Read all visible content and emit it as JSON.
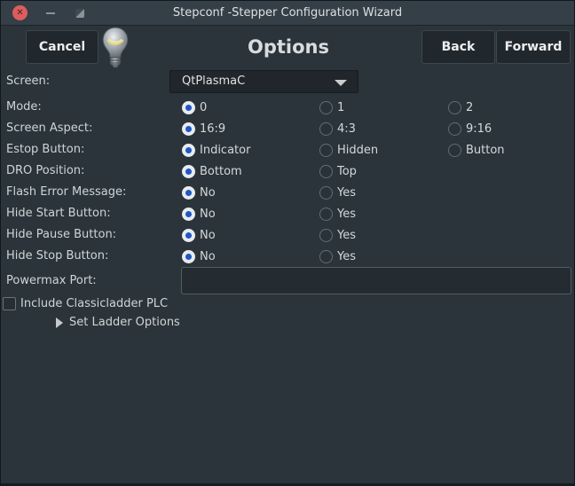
{
  "window": {
    "title": "Stepconf -Stepper Configuration Wizard",
    "close_glyph": "✕"
  },
  "header": {
    "cancel_label": "Cancel",
    "title": "Options",
    "back_label": "Back",
    "forward_label": "Forward",
    "icon": "lightbulb-icon"
  },
  "form": {
    "screen": {
      "label": "Screen:",
      "value": "QtPlasmaC"
    },
    "radio_rows": [
      {
        "label": "Mode:",
        "options": [
          {
            "label": "0",
            "selected": true
          },
          {
            "label": "1",
            "selected": false
          },
          {
            "label": "2",
            "selected": false
          }
        ]
      },
      {
        "label": "Screen Aspect:",
        "options": [
          {
            "label": "16:9",
            "selected": true
          },
          {
            "label": "4:3",
            "selected": false
          },
          {
            "label": "9:16",
            "selected": false
          }
        ]
      },
      {
        "label": "Estop Button:",
        "options": [
          {
            "label": "Indicator",
            "selected": true
          },
          {
            "label": "Hidden",
            "selected": false
          },
          {
            "label": "Button",
            "selected": false
          }
        ]
      },
      {
        "label": "DRO Position:",
        "options": [
          {
            "label": "Bottom",
            "selected": true
          },
          {
            "label": "Top",
            "selected": false
          }
        ]
      },
      {
        "label": "Flash Error Message:",
        "options": [
          {
            "label": "No",
            "selected": true
          },
          {
            "label": "Yes",
            "selected": false
          }
        ]
      },
      {
        "label": "Hide Start Button:",
        "options": [
          {
            "label": "No",
            "selected": true
          },
          {
            "label": "Yes",
            "selected": false
          }
        ]
      },
      {
        "label": "Hide Pause Button:",
        "options": [
          {
            "label": "No",
            "selected": true
          },
          {
            "label": "Yes",
            "selected": false
          }
        ]
      },
      {
        "label": "Hide Stop Button:",
        "options": [
          {
            "label": "No",
            "selected": true
          },
          {
            "label": "Yes",
            "selected": false
          }
        ]
      }
    ],
    "powermax": {
      "label": "Powermax Port:",
      "value": "",
      "placeholder": ""
    },
    "classicladder": {
      "label": "Include Classicladder PLC",
      "checked": false
    },
    "ladder_expander": {
      "label": "Set Ladder Options",
      "expanded": false
    }
  },
  "colors": {
    "titlebar_bg": "#343f47",
    "content_bg": "#2b343b",
    "button_bg": "#20282d",
    "accent_blue": "#1e57c8",
    "close_red": "#dd5d5d",
    "text": "#d4d8da"
  },
  "layout_hints": {
    "radio_column_lefts": [
      204,
      359,
      504
    ]
  }
}
